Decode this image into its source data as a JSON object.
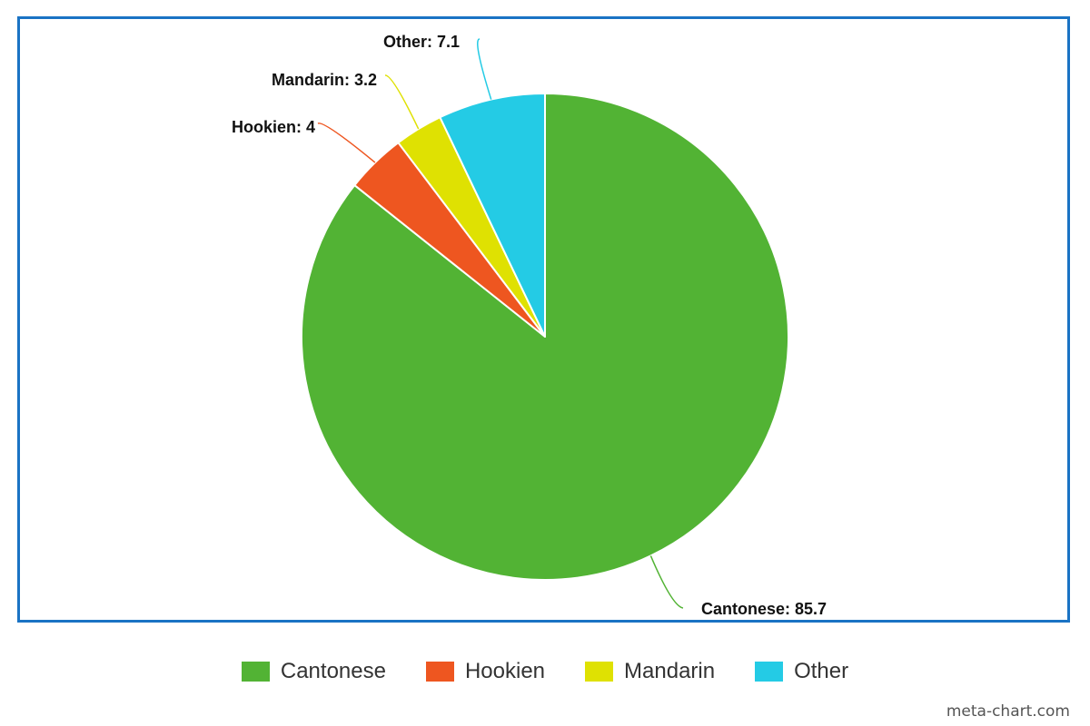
{
  "chart_data": {
    "type": "pie",
    "slices": [
      {
        "label": "Cantonese",
        "value": 85.7,
        "color": "#52b334",
        "data_label": "Cantonese: 85.7"
      },
      {
        "label": "Hookien",
        "value": 4,
        "color": "#ee5620",
        "data_label": "Hookien: 4"
      },
      {
        "label": "Mandarin",
        "value": 3.2,
        "color": "#dfe102",
        "data_label": "Mandarin: 3.2"
      },
      {
        "label": "Other",
        "value": 7.1,
        "color": "#24cbe5",
        "data_label": "Other: 7.1"
      }
    ],
    "legend_position": "bottom-center"
  },
  "frame_color": "#1a73c4",
  "watermark": "meta-chart.com"
}
